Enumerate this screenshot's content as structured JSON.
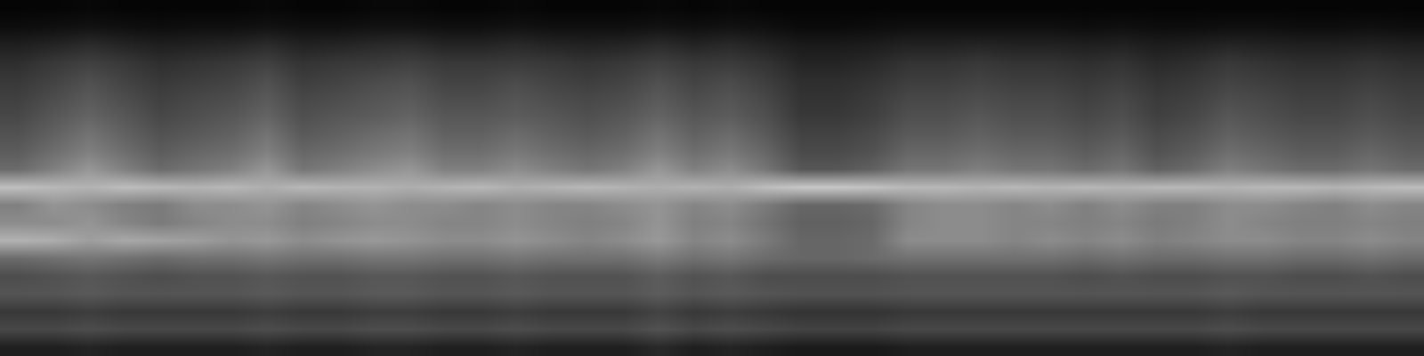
{
  "chart_data": {
    "type": "heatmap",
    "tick_labels": false,
    "grid": false,
    "color": "gray",
    "zlim": [
      0,
      100
    ],
    "cells": [
      [
        12,
        12,
        14,
        12,
        12,
        12,
        12,
        14,
        12,
        12,
        14,
        14,
        12,
        12,
        14,
        12,
        12,
        12,
        16,
        12,
        14,
        12,
        10,
        10,
        10,
        12,
        12,
        12,
        12,
        12,
        12,
        12,
        12,
        12,
        14,
        12,
        12,
        12,
        12,
        12
      ],
      [
        28,
        28,
        30,
        28,
        28,
        28,
        28,
        30,
        28,
        28,
        30,
        30,
        28,
        28,
        30,
        28,
        28,
        28,
        32,
        28,
        30,
        28,
        26,
        26,
        26,
        28,
        28,
        28,
        28,
        28,
        28,
        28,
        28,
        28,
        30,
        28,
        28,
        28,
        28,
        28
      ],
      [
        22,
        22,
        24,
        22,
        22,
        22,
        22,
        24,
        22,
        22,
        24,
        24,
        22,
        22,
        24,
        22,
        22,
        22,
        26,
        22,
        24,
        22,
        20,
        20,
        20,
        22,
        22,
        22,
        22,
        22,
        22,
        22,
        22,
        22,
        24,
        22,
        22,
        22,
        22,
        22
      ],
      [
        33,
        33,
        35,
        33,
        33,
        33,
        33,
        35,
        33,
        33,
        35,
        35,
        33,
        33,
        35,
        33,
        33,
        33,
        36,
        33,
        35,
        33,
        32,
        32,
        32,
        33,
        33,
        33,
        33,
        33,
        33,
        33,
        33,
        33,
        35,
        33,
        33,
        33,
        33,
        33
      ],
      [
        30,
        32,
        34,
        32,
        30,
        32,
        32,
        34,
        32,
        32,
        34,
        34,
        32,
        32,
        34,
        32,
        32,
        32,
        36,
        32,
        34,
        30,
        30,
        30,
        30,
        32,
        32,
        32,
        32,
        32,
        30,
        32,
        30,
        30,
        32,
        32,
        30,
        30,
        32,
        30
      ],
      [
        42,
        44,
        46,
        44,
        42,
        44,
        44,
        46,
        44,
        44,
        46,
        46,
        44,
        44,
        46,
        44,
        44,
        44,
        48,
        44,
        46,
        42,
        40,
        40,
        42,
        44,
        44,
        44,
        44,
        44,
        42,
        44,
        42,
        42,
        44,
        44,
        42,
        42,
        44,
        42
      ],
      [
        70,
        68,
        62,
        66,
        64,
        62,
        58,
        60,
        55,
        58,
        60,
        58,
        55,
        55,
        58,
        55,
        52,
        55,
        60,
        52,
        55,
        48,
        40,
        40,
        42,
        55,
        55,
        55,
        52,
        55,
        52,
        55,
        50,
        52,
        55,
        55,
        52,
        52,
        55,
        52
      ],
      [
        55,
        55,
        58,
        52,
        48,
        52,
        55,
        55,
        50,
        52,
        55,
        55,
        52,
        52,
        55,
        52,
        50,
        52,
        58,
        50,
        52,
        45,
        38,
        38,
        40,
        52,
        55,
        55,
        52,
        52,
        50,
        52,
        48,
        50,
        55,
        52,
        50,
        50,
        52,
        50
      ],
      [
        50,
        58,
        55,
        50,
        48,
        55,
        55,
        58,
        52,
        55,
        58,
        55,
        55,
        52,
        55,
        52,
        52,
        55,
        58,
        52,
        55,
        48,
        40,
        40,
        42,
        52,
        55,
        55,
        52,
        55,
        50,
        55,
        50,
        50,
        55,
        55,
        52,
        50,
        55,
        52
      ],
      [
        75,
        72,
        70,
        74,
        72,
        70,
        72,
        68,
        72,
        70,
        70,
        68,
        70,
        72,
        68,
        70,
        72,
        70,
        68,
        70,
        68,
        74,
        78,
        78,
        76,
        72,
        72,
        70,
        72,
        70,
        72,
        70,
        72,
        72,
        70,
        72,
        72,
        70,
        72,
        74
      ],
      [
        42,
        50,
        59,
        50,
        42,
        46,
        50,
        59,
        46,
        50,
        55,
        59,
        50,
        50,
        55,
        50,
        46,
        50,
        59,
        50,
        55,
        46,
        34,
        34,
        38,
        46,
        46,
        50,
        46,
        46,
        42,
        46,
        38,
        42,
        50,
        46,
        42,
        42,
        46,
        42
      ],
      [
        36,
        43,
        50,
        43,
        36,
        40,
        43,
        50,
        40,
        43,
        47,
        50,
        43,
        43,
        47,
        43,
        40,
        43,
        50,
        43,
        47,
        40,
        29,
        29,
        32,
        40,
        40,
        43,
        40,
        40,
        36,
        40,
        32,
        36,
        43,
        40,
        36,
        36,
        40,
        36
      ],
      [
        32,
        38,
        45,
        38,
        32,
        35,
        38,
        45,
        35,
        38,
        42,
        45,
        38,
        38,
        42,
        38,
        35,
        38,
        45,
        38,
        42,
        35,
        26,
        26,
        29,
        35,
        35,
        38,
        35,
        35,
        32,
        35,
        29,
        32,
        38,
        35,
        32,
        32,
        35,
        32
      ],
      [
        28,
        34,
        39,
        34,
        28,
        31,
        34,
        39,
        31,
        34,
        36,
        39,
        34,
        34,
        36,
        34,
        31,
        34,
        39,
        34,
        36,
        31,
        22,
        22,
        25,
        31,
        31,
        34,
        31,
        31,
        28,
        31,
        25,
        28,
        34,
        31,
        28,
        28,
        31,
        28
      ],
      [
        25,
        30,
        35,
        30,
        25,
        28,
        30,
        35,
        28,
        30,
        33,
        35,
        30,
        30,
        33,
        30,
        28,
        30,
        35,
        30,
        33,
        28,
        20,
        20,
        23,
        28,
        28,
        30,
        28,
        28,
        25,
        28,
        23,
        25,
        30,
        28,
        25,
        25,
        28,
        25
      ],
      [
        22,
        26,
        31,
        26,
        22,
        24,
        26,
        31,
        24,
        26,
        29,
        31,
        26,
        26,
        29,
        26,
        24,
        26,
        31,
        26,
        29,
        24,
        18,
        18,
        20,
        24,
        24,
        26,
        24,
        24,
        22,
        24,
        20,
        22,
        26,
        24,
        22,
        22,
        24,
        22
      ],
      [
        18,
        22,
        25,
        22,
        18,
        20,
        22,
        25,
        20,
        22,
        23,
        25,
        22,
        22,
        23,
        22,
        20,
        22,
        25,
        22,
        23,
        20,
        14,
        14,
        16,
        20,
        20,
        22,
        20,
        20,
        18,
        20,
        16,
        18,
        22,
        20,
        18,
        18,
        20,
        18
      ],
      [
        12,
        14,
        17,
        14,
        12,
        13,
        14,
        17,
        13,
        14,
        16,
        17,
        14,
        14,
        16,
        14,
        13,
        14,
        17,
        14,
        16,
        13,
        10,
        10,
        11,
        13,
        13,
        14,
        13,
        13,
        12,
        13,
        11,
        12,
        14,
        13,
        12,
        12,
        13,
        12
      ],
      [
        5,
        6,
        7,
        6,
        5,
        6,
        6,
        7,
        6,
        6,
        7,
        7,
        6,
        6,
        7,
        6,
        6,
        6,
        7,
        6,
        7,
        6,
        4,
        4,
        5,
        6,
        6,
        6,
        6,
        6,
        5,
        6,
        5,
        5,
        6,
        6,
        5,
        5,
        6,
        5
      ],
      [
        2,
        2,
        3,
        2,
        2,
        2,
        2,
        3,
        2,
        2,
        3,
        3,
        2,
        2,
        3,
        2,
        2,
        2,
        3,
        2,
        3,
        2,
        2,
        2,
        2,
        2,
        2,
        2,
        2,
        2,
        2,
        2,
        2,
        2,
        2,
        2,
        2,
        2,
        2,
        2
      ]
    ]
  }
}
